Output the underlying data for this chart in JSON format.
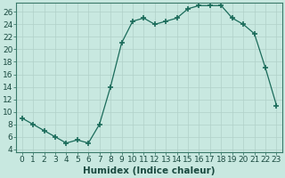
{
  "x": [
    0,
    1,
    2,
    3,
    4,
    5,
    6,
    7,
    8,
    9,
    10,
    11,
    12,
    13,
    14,
    15,
    16,
    17,
    18,
    19,
    20,
    21,
    22,
    23
  ],
  "y": [
    9,
    8,
    7,
    6,
    5,
    5.5,
    5,
    8,
    14,
    21,
    24.5,
    25,
    24,
    24.5,
    25,
    26.5,
    27,
    27,
    27,
    25,
    24,
    22.5,
    17,
    11
  ],
  "line_color": "#1a6b5a",
  "marker": "+",
  "marker_size": 4,
  "marker_lw": 1.2,
  "bg_color": "#c8e8e0",
  "grid_color": "#b0d0c8",
  "xlabel": "Humidex (Indice chaleur)",
  "xlim": [
    -0.5,
    23.5
  ],
  "ylim": [
    3.5,
    27.5
  ],
  "yticks": [
    4,
    6,
    8,
    10,
    12,
    14,
    16,
    18,
    20,
    22,
    24,
    26
  ],
  "xtick_labels": [
    "0",
    "1",
    "2",
    "3",
    "4",
    "5",
    "6",
    "7",
    "8",
    "9",
    "10",
    "11",
    "12",
    "13",
    "14",
    "15",
    "16",
    "17",
    "18",
    "19",
    "20",
    "21",
    "22",
    "23"
  ],
  "xlabel_fontsize": 7.5,
  "tick_fontsize": 6.5
}
